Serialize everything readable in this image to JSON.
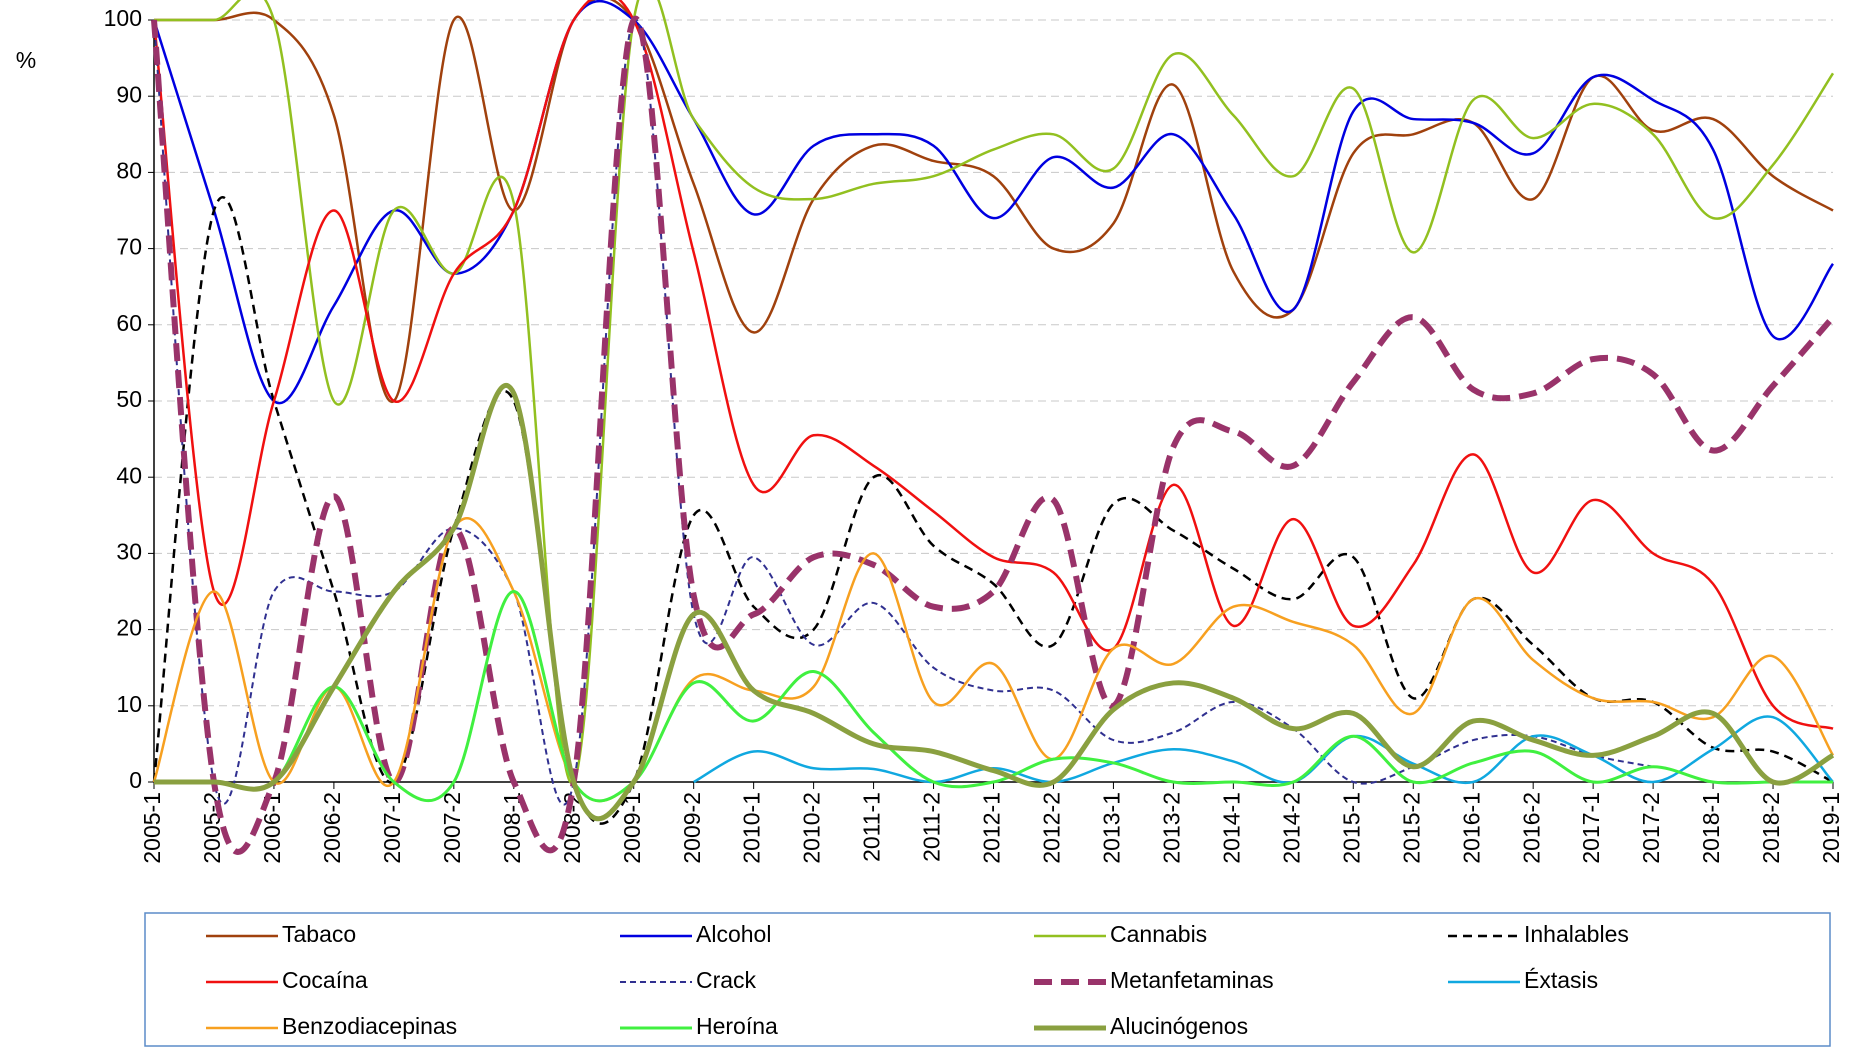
{
  "chart_data": {
    "type": "line",
    "ylabel": "%",
    "categories": [
      "2005-1",
      "2005-2",
      "2006-1",
      "2006-2",
      "2007-1",
      "2007-2",
      "2008-1",
      "2008-2",
      "2009-1",
      "2009-2",
      "2010-1",
      "2010-2",
      "2011-1",
      "2011-2",
      "2012-1",
      "2012-2",
      "2013-1",
      "2013-2",
      "2014-1",
      "2014-2",
      "2015-1",
      "2015-2",
      "2016-1",
      "2016-2",
      "2017-1",
      "2017-2",
      "2018-1",
      "2018-2",
      "2019-1"
    ],
    "ylim": [
      0,
      100
    ],
    "yticks": [
      0,
      10,
      20,
      30,
      40,
      50,
      60,
      70,
      80,
      90,
      100
    ],
    "grid": true,
    "legend": "bottom",
    "series": [
      {
        "name": "Tabaco",
        "color": "#a0410d",
        "line_style": "solid",
        "values": [
          100,
          100,
          100,
          87.5,
          50,
          100,
          75,
          100,
          100,
          78.5,
          59,
          76.5,
          83.5,
          81.5,
          79.5,
          70,
          73.3,
          91.5,
          67,
          62,
          82.5,
          85,
          86.5,
          76.5,
          92.5,
          85.5,
          87,
          79.5,
          75
        ]
      },
      {
        "name": "Alcohol",
        "color": "#0000e0",
        "line_style": "solid",
        "values": [
          100,
          75,
          50,
          62.5,
          75,
          66.7,
          75,
          100,
          100,
          87,
          74.5,
          83.5,
          85,
          83.5,
          74,
          82,
          78,
          85,
          74.5,
          62,
          88,
          87,
          86.5,
          82.5,
          92.5,
          89.5,
          83,
          58.5,
          68
        ]
      },
      {
        "name": "Cannabis",
        "color": "#92c020",
        "line_style": "solid",
        "values": [
          100,
          100,
          100,
          50,
          75,
          66.7,
          76,
          0,
          100,
          87,
          78,
          76.5,
          78.5,
          79.5,
          83,
          85,
          80.5,
          95.5,
          87.5,
          79.5,
          91,
          69.5,
          89.5,
          84.5,
          89,
          85,
          74,
          81,
          93
        ]
      },
      {
        "name": "Inhalables",
        "color": "#000000",
        "line_style": "dashed",
        "values": [
          0,
          75,
          50,
          25,
          0,
          33.3,
          50,
          0,
          0,
          35,
          23,
          20,
          40,
          31,
          26,
          18,
          36.5,
          33,
          28,
          24,
          29.5,
          11,
          24,
          18,
          11,
          10.5,
          4.5,
          4,
          0
        ]
      },
      {
        "name": "Cocaína",
        "color": "#f01010",
        "line_style": "solid",
        "values": [
          100,
          25,
          50,
          75,
          50,
          66.7,
          75,
          100,
          100,
          69.5,
          39,
          45.5,
          41.5,
          35.5,
          29.5,
          27.5,
          17.5,
          39,
          20.5,
          34.5,
          20.5,
          28.5,
          43,
          27.5,
          37,
          30,
          26,
          10,
          7
        ]
      },
      {
        "name": "Crack",
        "color": "#303090",
        "line_style": "thin-dashed",
        "values": [
          100,
          0,
          25,
          25,
          25,
          33.3,
          25,
          0,
          100,
          22,
          29.5,
          18,
          23.5,
          15,
          12,
          12,
          5.5,
          6.5,
          10.5,
          7,
          0,
          2,
          5.5,
          6,
          3.5,
          2,
          null,
          null,
          null
        ]
      },
      {
        "name": "Metanfetaminas",
        "color": "#99336a",
        "line_style": "thick-dashed",
        "values": [
          100,
          0,
          0,
          37.5,
          0,
          33.3,
          0,
          0,
          100,
          24.5,
          22,
          29.5,
          28.5,
          23,
          25,
          37,
          10,
          44,
          46,
          41.5,
          52.5,
          61,
          51.5,
          51,
          55.5,
          53.5,
          43.5,
          52,
          61
        ]
      },
      {
        "name": "Éxtasis",
        "color": "#10a8e0",
        "line_style": "solid",
        "values": [
          null,
          null,
          null,
          null,
          null,
          null,
          null,
          null,
          null,
          0,
          4,
          1.8,
          1.7,
          0,
          1.8,
          0,
          2.5,
          4.3,
          2.7,
          0,
          6,
          2.4,
          0,
          6,
          3.5,
          0,
          4.3,
          8.5,
          0
        ]
      },
      {
        "name": "Benzodiacepinas",
        "color": "#f7a020",
        "line_style": "solid",
        "values": [
          0,
          25,
          0,
          12.5,
          0,
          33.3,
          25,
          0,
          0,
          13.5,
          12,
          12.5,
          30,
          10.5,
          15.5,
          3,
          17.5,
          15.5,
          23,
          21,
          18,
          9,
          24,
          16,
          11,
          10.5,
          8.5,
          16.5,
          3.5
        ]
      },
      {
        "name": "Heroína",
        "color": "#40f040",
        "line_style": "medium",
        "values": [
          0,
          0,
          0,
          12.5,
          0,
          0,
          25,
          0,
          0,
          13,
          8,
          14.5,
          6.5,
          0,
          0,
          3,
          2.5,
          0,
          0,
          0,
          6,
          0,
          2.5,
          4,
          0,
          2,
          0,
          0,
          0
        ]
      },
      {
        "name": "Alucinógenos",
        "color": "#8aa040",
        "line_style": "thick",
        "values": [
          0,
          0,
          0,
          12.5,
          25,
          33.3,
          51,
          0,
          0,
          22,
          12,
          9,
          5,
          4,
          1.5,
          0,
          9.5,
          13,
          11,
          7,
          9,
          2,
          8,
          5.5,
          3.5,
          6,
          9,
          0,
          3.5
        ]
      }
    ]
  }
}
